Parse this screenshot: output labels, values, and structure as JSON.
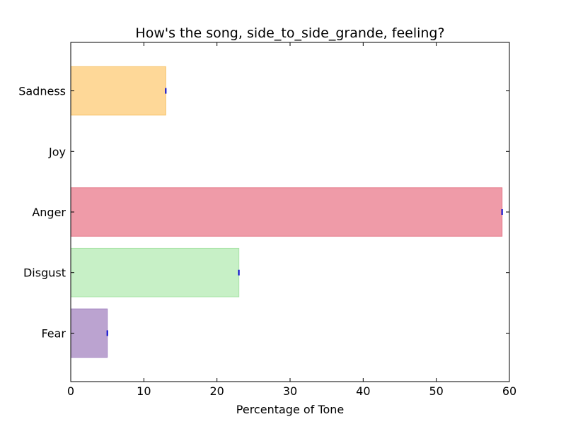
{
  "chart_data": {
    "type": "bar",
    "orientation": "horizontal",
    "title": "How's the song, side_to_side_grande, feeling?",
    "xlabel": "Percentage of Tone",
    "ylabel": "",
    "xlim": [
      0,
      60
    ],
    "xticks": [
      "0",
      "10",
      "20",
      "30",
      "40",
      "50",
      "60"
    ],
    "grid": false,
    "categories": [
      "Fear",
      "Disgust",
      "Anger",
      "Joy",
      "Sadness"
    ],
    "values": [
      5,
      23,
      59,
      0,
      13
    ],
    "colors": [
      "#bba3d0",
      "#c7f0c6",
      "#ef9ba8",
      "#ffffff",
      "#fed898"
    ],
    "edge_colors": [
      "#a585c2",
      "#a9e3a8",
      "#e47a8c",
      "#ffffff",
      "#f7c46c"
    ],
    "error_marker_color": "#0000cc"
  }
}
